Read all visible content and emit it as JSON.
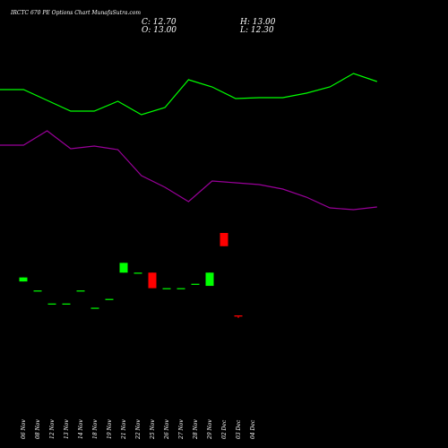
{
  "header": {
    "title": "IRCTC 670 PE Options Chart MunafaSutra.com",
    "close_label": "C: 12.70",
    "high_label": "H: 13.00",
    "open_label": "O: 13.00",
    "low_label": "L: 12.30"
  },
  "colors": {
    "background": "#000000",
    "up": "#00ff00",
    "down": "#ff0000",
    "line_upper": "#00ff00",
    "line_lower": "#990099",
    "text": "#ffffff"
  },
  "chart_data": {
    "type": "candlestick",
    "categories": [
      "06 Nov",
      "08 Nov",
      "12 Nov",
      "13 Nov",
      "14 Nov",
      "18 Nov",
      "19 Nov",
      "21 Nov",
      "22 Nov",
      "25 Nov",
      "26 Nov",
      "27 Nov",
      "28 Nov",
      "29 Nov",
      "02 Dec",
      "03 Dec",
      "04 Dec"
    ],
    "ohlc": [
      {
        "o": 21.85,
        "h": 22.9,
        "l": 21.85,
        "c": 22.9
      },
      {
        "o": 19.5,
        "h": 19.5,
        "l": 19.5,
        "c": 19.5
      },
      {
        "o": 16.1,
        "h": 16.1,
        "l": 16.1,
        "c": 16.1
      },
      {
        "o": 16.1,
        "h": 16.1,
        "l": 16.1,
        "c": 16.1
      },
      {
        "o": 19.5,
        "h": 19.5,
        "l": 19.5,
        "c": 19.5
      },
      {
        "o": 15.0,
        "h": 15.0,
        "l": 15.0,
        "c": 15.0
      },
      {
        "o": 17.3,
        "h": 17.3,
        "l": 17.3,
        "c": 17.3
      },
      {
        "o": 24.15,
        "h": 26.7,
        "l": 24.15,
        "c": 26.7
      },
      {
        "o": 24.15,
        "h": 24.15,
        "l": 24.15,
        "c": 24.15
      },
      {
        "o": 24.15,
        "h": 24.15,
        "l": 20.1,
        "c": 20.1
      },
      {
        "o": 20.1,
        "h": 20.1,
        "l": 20.1,
        "c": 20.1
      },
      {
        "o": 20.1,
        "h": 20.1,
        "l": 20.1,
        "c": 20.1
      },
      {
        "o": 21.25,
        "h": 21.25,
        "l": 21.25,
        "c": 21.25
      },
      {
        "o": 20.7,
        "h": 24.15,
        "l": 20.7,
        "c": 24.15
      },
      {
        "o": 34.5,
        "h": 34.5,
        "l": 31.05,
        "c": 31.05
      },
      {
        "o": 13.0,
        "h": 13.0,
        "l": 12.3,
        "c": 12.7
      }
    ],
    "ohlc_dates": [
      "06 Nov",
      "08 Nov",
      "12 Nov",
      "13 Nov",
      "14 Nov",
      "18 Nov",
      "19 Nov",
      "21 Nov",
      "22 Nov",
      "25 Nov",
      "26 Nov",
      "27 Nov",
      "28 Nov",
      "29 Nov",
      "02 Dec",
      "03 Dec"
    ],
    "upper_line": [
      100,
      100,
      112,
      124,
      124,
      113,
      128,
      120,
      89,
      97,
      110,
      109,
      109,
      104,
      97,
      82,
      91
    ],
    "lower_line": [
      162,
      162,
      146,
      166,
      163,
      167,
      196,
      209,
      225,
      202,
      204,
      206,
      211,
      220,
      232,
      234,
      231
    ],
    "grid": false,
    "legend": "none"
  }
}
